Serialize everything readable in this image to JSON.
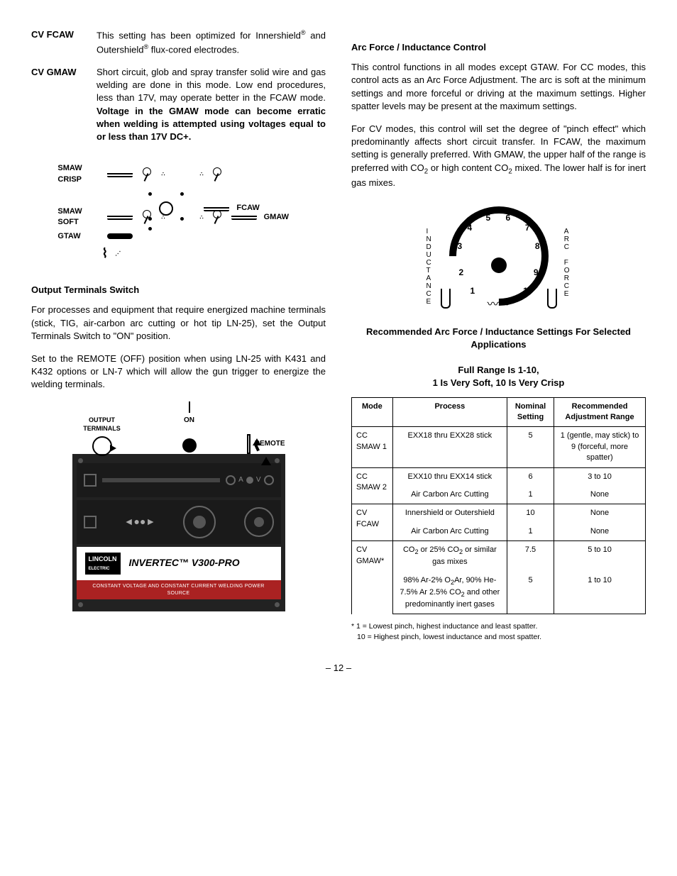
{
  "left": {
    "cv_fcaw": {
      "label": "CV FCAW",
      "text_a": "This setting has been optimized for Innershield",
      "text_b": " and Outershield",
      "text_c": " flux-cored electrodes."
    },
    "cv_gmaw": {
      "label": "CV GMAW",
      "text": "Short circuit, glob and spray transfer solid wire and gas welding are done in this mode. Low end procedures, less than 17V, may operate better in the FCAW mode. ",
      "bold": "Voltage in the GMAW mode can become erratic when welding is attempted using voltages equal to or less than 17V DC+."
    },
    "mode_switch": {
      "smaw_crisp": "SMAW\nCRISP",
      "fcaw": "FCAW",
      "smaw_soft": "SMAW\nSOFT",
      "gmaw": "GMAW",
      "gtaw": "GTAW"
    },
    "output_heading": "Output Terminals Switch",
    "output_p1": "For processes and equipment that require energized machine terminals (stick, TIG, air-carbon arc cutting or hot tip LN-25), set the Output Terminals Switch to \"ON\" position.",
    "output_p2": "Set to the REMOTE (OFF) position when using LN-25 with K431 and K432 options or LN-7 which will allow the gun trigger to energize the welding terminals.",
    "switch_labels": {
      "on": "ON",
      "output_terminals": "OUTPUT\nTERMINALS",
      "remote": "REMOTE"
    },
    "panel": {
      "brand": "LINCOLN",
      "brand_sub": "ELECTRIC",
      "model": "INVERTEC™  V300-PRO",
      "banner": "CONSTANT VOLTAGE AND CONSTANT CURRENT WELDING POWER SOURCE"
    }
  },
  "right": {
    "arc_heading": "Arc Force / Inductance Control",
    "arc_p1": "This control functions in all modes except GTAW. For CC modes, this control acts as an Arc Force Adjustment. The arc is soft at the minimum settings and more forceful or driving at the maximum settings. Higher spatter levels may be present at the maximum settings.",
    "arc_p2_a": "For CV modes, this control will set the degree of \"pinch effect\" which predominantly affects short circuit transfer. In FCAW, the maximum setting is generally preferred. With GMAW, the upper half of the range is preferred with CO",
    "arc_p2_b": " or high content CO",
    "arc_p2_c": " mixed. The lower half is for inert gas mixes.",
    "dial": {
      "left_label": "INDUCTANCE",
      "right_label": "ARC FORCE",
      "numbers": [
        "1",
        "2",
        "3",
        "4",
        "5",
        "6",
        "7",
        "8",
        "9",
        "10"
      ]
    },
    "rec_heading_1": "Recommended Arc Force / Inductance Settings For Selected Applications",
    "rec_heading_2a": "Full Range Is 1-10,",
    "rec_heading_2b": "1 Is Very Soft, 10 Is Very Crisp",
    "table": {
      "headers": [
        "Mode",
        "Process",
        "Nominal Setting",
        "Recommended Adjustment Range"
      ],
      "rows": [
        {
          "mode": "CC SMAW 1",
          "process": "EXX18 thru EXX28 stick",
          "nominal": "5",
          "range": "1 (gentle, may stick) to 9 (forceful, more spatter)"
        },
        {
          "mode": "CC SMAW 2",
          "process": "EXX10 thru EXX14 stick",
          "nominal": "6",
          "range": "3 to 10",
          "sub": [
            {
              "process": "Air Carbon Arc Cutting",
              "nominal": "1",
              "range": "None"
            }
          ]
        },
        {
          "mode": "CV FCAW",
          "process": "Innershield or Outershield",
          "nominal": "10",
          "range": "None",
          "sub": [
            {
              "process": "Air Carbon Arc Cutting",
              "nominal": "1",
              "range": "None"
            }
          ]
        },
        {
          "mode": "CV GMAW*",
          "process_html": "CO<sub>2</sub> or 25% CO<sub>2</sub> or similar gas mixes",
          "nominal": "7.5",
          "range": "5 to 10",
          "sub": [
            {
              "process_html": "98% Ar-2% O<sub>2</sub>Ar, 90% He-7.5% Ar 2.5% CO<sub>2</sub> and other predominantly inert gases",
              "nominal": "5",
              "range": "1 to 10"
            }
          ]
        }
      ]
    },
    "footnote_a": "* 1 = Lowest pinch, highest inductance and least spatter.",
    "footnote_b": "10 = Highest pinch, lowest inductance and most spatter."
  },
  "page_number": "– 12 –"
}
